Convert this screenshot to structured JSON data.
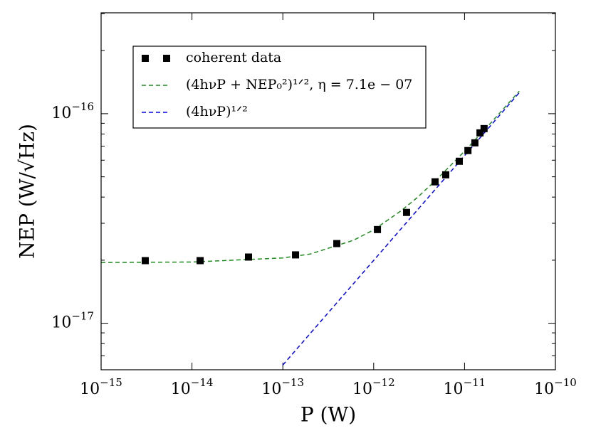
{
  "chart_data": {
    "type": "scatter-line",
    "x_label": "P (W)",
    "y_label": "NEP (W/√Hz)",
    "x_log": true,
    "y_log": true,
    "xlim": [
      1e-15,
      1e-10
    ],
    "ylim": [
      6e-18,
      3.03e-16
    ],
    "xticks": [
      {
        "value": 1e-15,
        "label": "10−15"
      },
      {
        "value": 1e-14,
        "label": "10−14"
      },
      {
        "value": 1e-13,
        "label": "10−13"
      },
      {
        "value": 1e-12,
        "label": "10−12"
      },
      {
        "value": 1e-11,
        "label": "10−11"
      },
      {
        "value": 1e-10,
        "label": "10−10"
      }
    ],
    "yticks": [
      {
        "value": 1e-17,
        "label": "10−17"
      },
      {
        "value": 1e-16,
        "label": "10−16"
      }
    ],
    "y_minor_ticks": [
      7e-18,
      8e-18,
      9e-18,
      2e-17,
      3e-17,
      4e-17,
      5e-17,
      6e-17,
      7e-17,
      8e-17,
      9e-17,
      2e-16,
      3e-16
    ],
    "legend": "upper left",
    "series": [
      {
        "name": "coherent data",
        "style": "markers",
        "color": "#000000",
        "x": [
          3.06e-15,
          1.23e-14,
          4.19e-14,
          1.38e-13,
          3.93e-13,
          1.1e-12,
          2.3e-12,
          4.74e-12,
          6.21e-12,
          8.75e-12,
          1.09e-11,
          1.3e-11,
          1.48e-11,
          1.64e-11
        ],
        "values": [
          1.99e-17,
          1.99e-17,
          2.07e-17,
          2.12e-17,
          2.4e-17,
          2.8e-17,
          3.38e-17,
          4.73e-17,
          5.11e-17,
          5.93e-17,
          6.67e-17,
          7.26e-17,
          8.1e-17,
          8.49e-17
        ]
      },
      {
        "name": "(4hνP + NEP₀²)¹ᐟ²,  η = 7.1e − 07",
        "style": "dashed",
        "color": "#1e8c1e",
        "x": [
          1e-15,
          1e-14,
          1e-13,
          2e-13,
          6e-13,
          1e-12,
          2e-12,
          3e-12,
          5e-12,
          1e-11,
          2e-11,
          4e-11
        ],
        "values": [
          1.95e-17,
          1.96e-17,
          2.05e-17,
          2.14e-17,
          2.49e-17,
          2.79e-17,
          3.44e-17,
          3.97e-17,
          4.88e-17,
          6.62e-17,
          9.15e-17,
          1.28e-16
        ]
      },
      {
        "name": "(4hνP)¹ᐟ²",
        "style": "dashed",
        "color": "#0000ff",
        "x": [
          1e-13,
          4e-11
        ],
        "values": [
          6.32e-18,
          1.26e-16
        ]
      }
    ]
  }
}
